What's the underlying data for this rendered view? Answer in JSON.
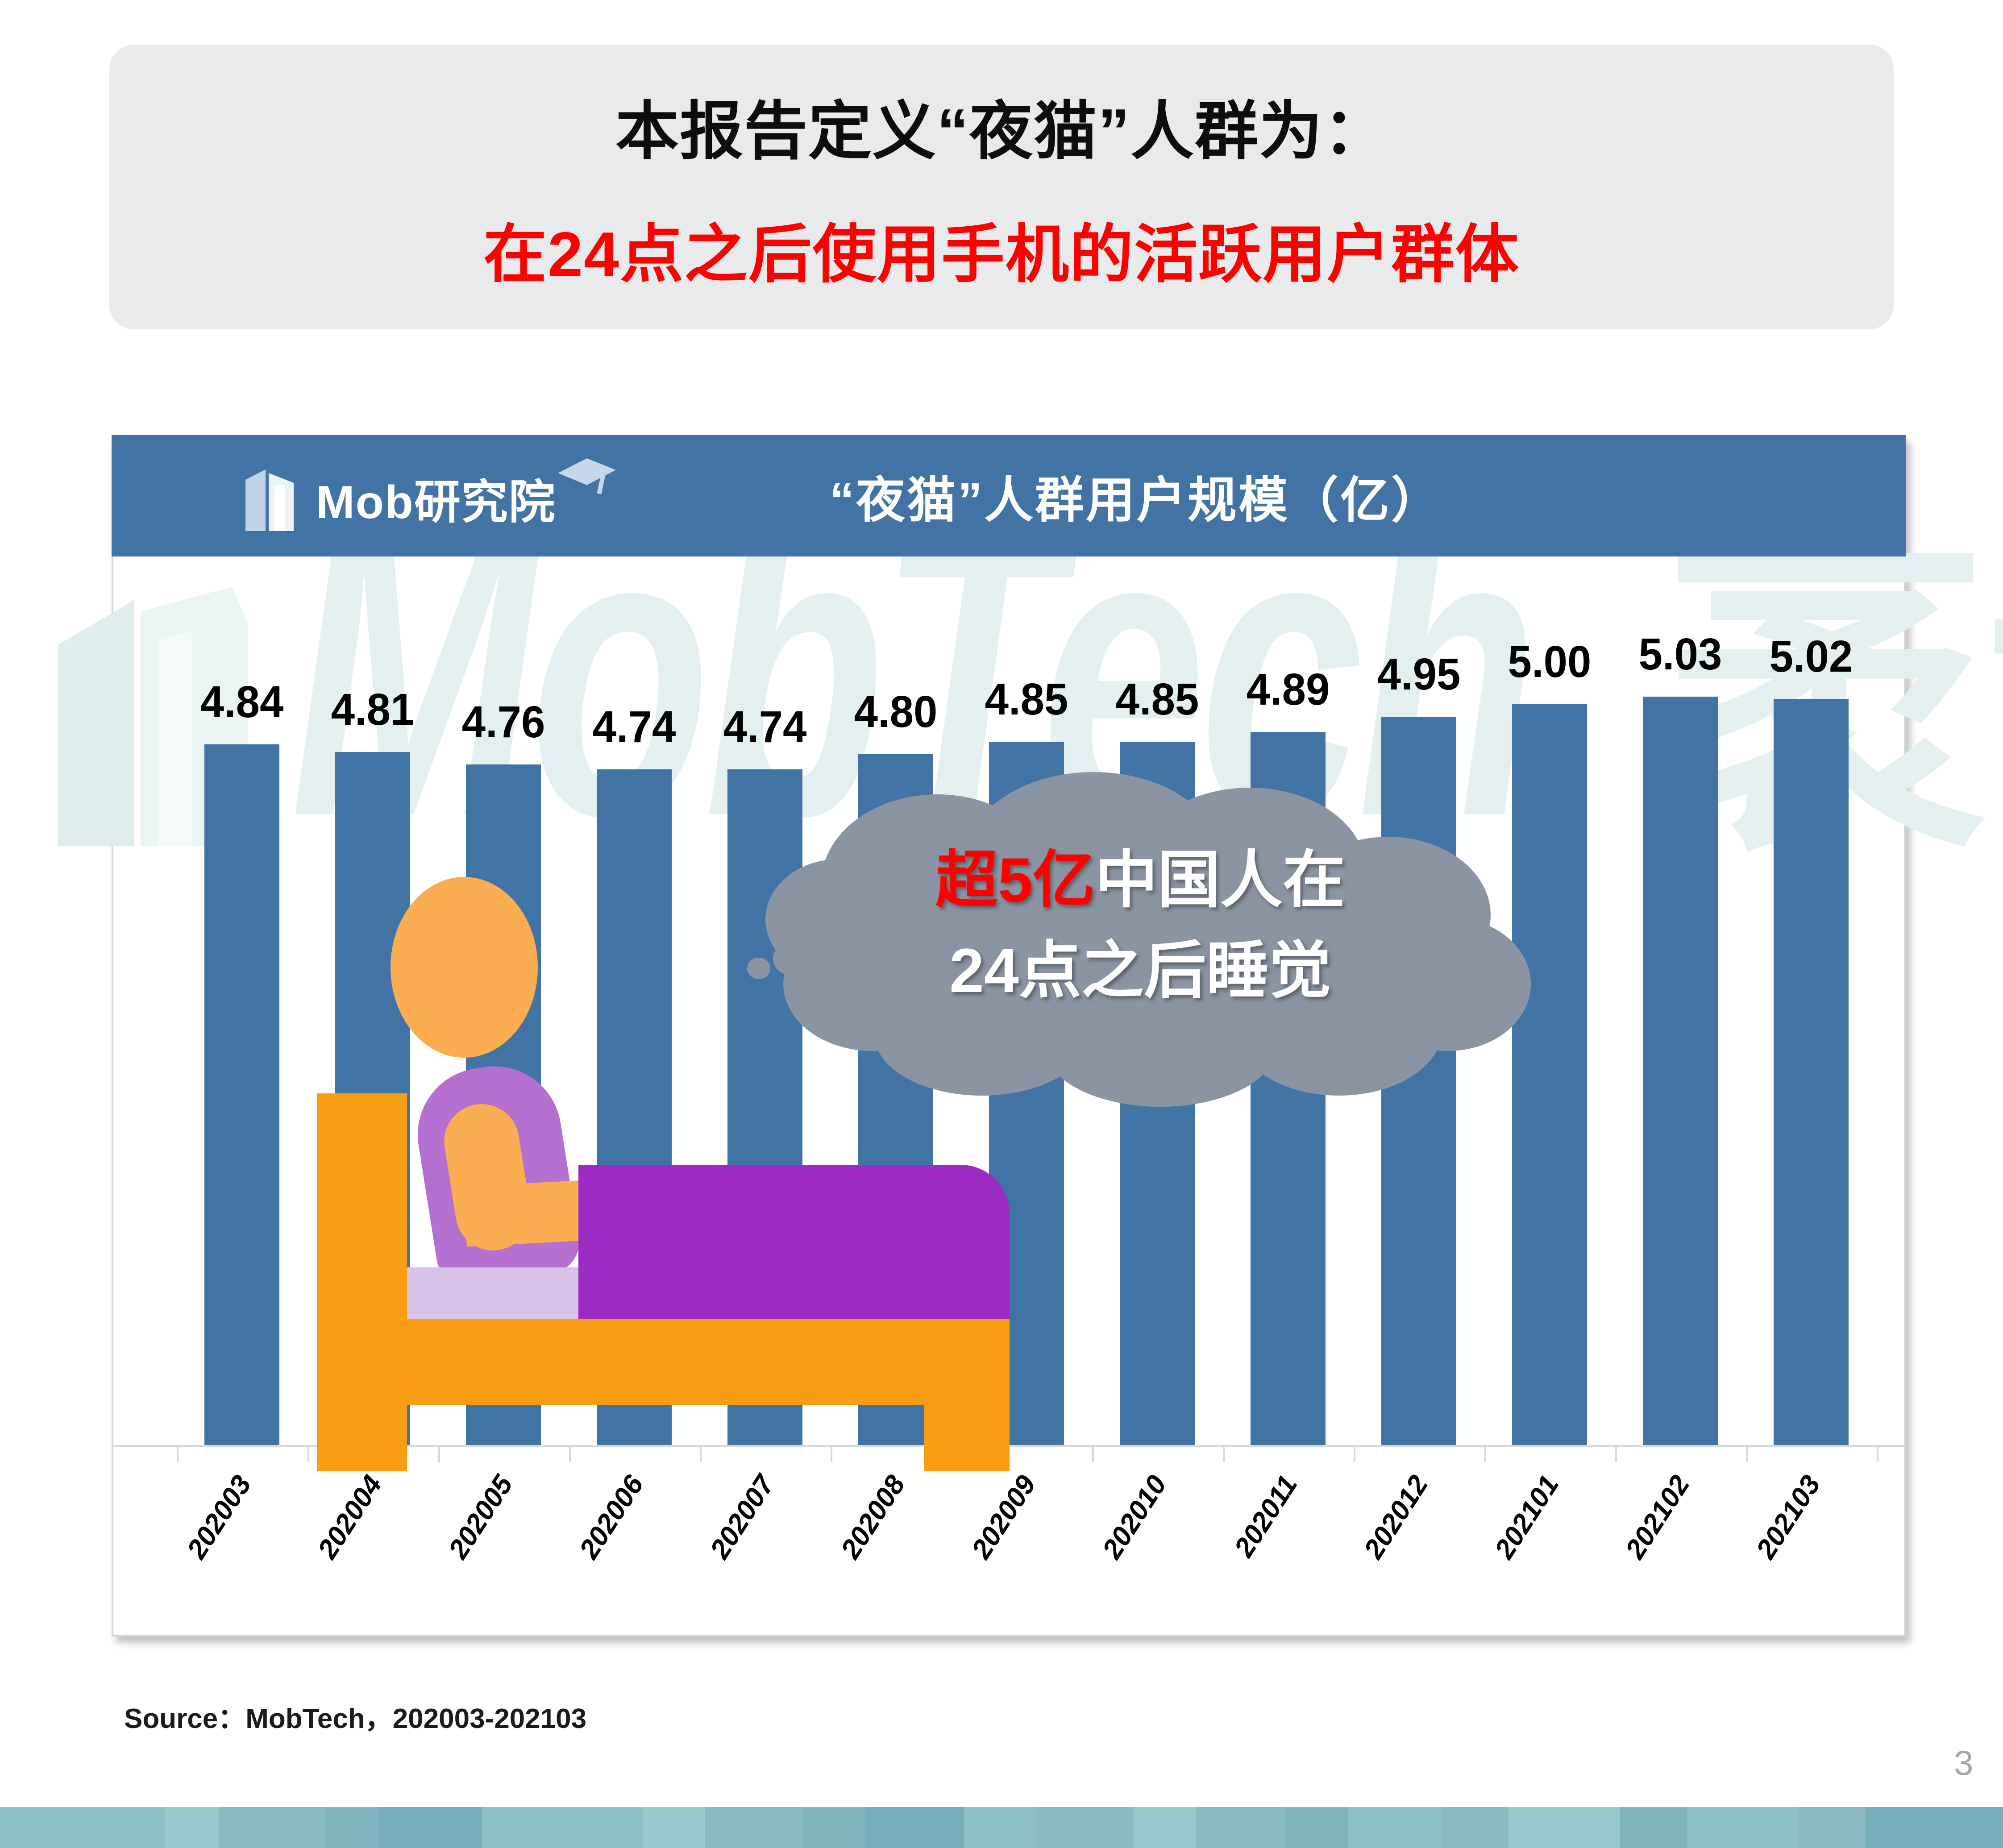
{
  "page": {
    "page_number": "3"
  },
  "header": {
    "line1": "本报告定义“夜猫”人群为：",
    "line2": "在24点之后使用手机的活跃用户群体",
    "bg_color": "#E9EAEC",
    "line1_color": "#0D0D0D",
    "line2_color": "#FE0000"
  },
  "chart_card": {
    "band": {
      "bg_color": "#4273A5",
      "logo_text": "Mob研究院",
      "title": "“夜猫”人群用户规模（亿）"
    },
    "watermark": {
      "latin": "MobTech",
      "cjk": "袤博",
      "color": "#E4F0EF"
    },
    "cloud": {
      "highlight": "超5亿",
      "line1_rest": "中国人在",
      "line2": "24点之后睡觉",
      "bubble_color": "#8A94A3",
      "highlight_color": "#FE0000",
      "text_color": "#FFFFFF"
    }
  },
  "chart_data": {
    "type": "bar",
    "title": "“夜猫”人群用户规模（亿）",
    "categories": [
      "202003",
      "202004",
      "202005",
      "202006",
      "202007",
      "202008",
      "202009",
      "202010",
      "202011",
      "202012",
      "202101",
      "202102",
      "202103"
    ],
    "values": [
      4.84,
      4.81,
      4.76,
      4.74,
      4.74,
      4.8,
      4.85,
      4.85,
      4.89,
      4.95,
      5.0,
      5.03,
      5.02
    ],
    "bar_color": "#4273A5",
    "value_label_color": "#000000",
    "axis_color": "#D8D8D8",
    "y_axis_visible": false,
    "gridlines": false,
    "legend": "none",
    "baseline_value": 2.05,
    "value_labels_shown": true
  },
  "source": {
    "text": "Source：MobTech，202003-202103"
  },
  "footer_strip": {
    "palette": [
      "#8FC0C8",
      "#9CC8CF",
      "#8BBAC4",
      "#7FB3BE",
      "#77ADBA"
    ],
    "segments": [
      [
        370,
        0
      ],
      [
        120,
        1
      ],
      [
        240,
        2
      ],
      [
        120,
        3
      ],
      [
        230,
        4
      ],
      [
        360,
        0
      ],
      [
        140,
        1
      ],
      [
        220,
        2
      ],
      [
        140,
        3
      ],
      [
        220,
        4
      ],
      [
        160,
        0
      ],
      [
        220,
        2
      ],
      [
        140,
        1
      ],
      [
        200,
        2
      ],
      [
        140,
        3
      ],
      [
        210,
        0
      ],
      [
        150,
        2
      ],
      [
        250,
        1
      ],
      [
        150,
        3
      ],
      [
        250,
        0
      ],
      [
        150,
        2
      ],
      [
        308,
        4
      ]
    ]
  }
}
